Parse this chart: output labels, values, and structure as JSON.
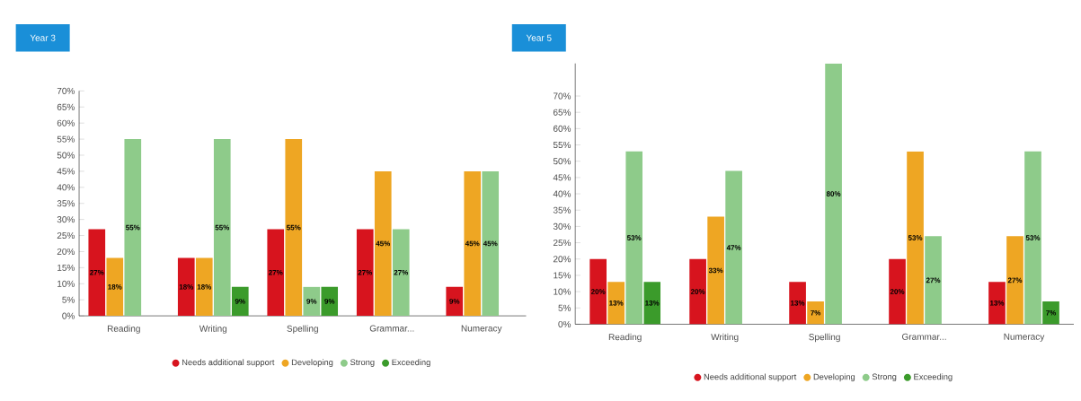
{
  "chart_data": [
    {
      "type": "bar",
      "title": "Year 3",
      "categories": [
        "Reading",
        "Writing",
        "Spelling",
        "Grammar...",
        "Numeracy"
      ],
      "series": [
        {
          "name": "Needs additional support",
          "color": "#d7141e",
          "values": [
            27,
            18,
            27,
            27,
            9
          ],
          "value_labels": [
            "27%",
            "18%",
            "27%",
            "27%",
            "9%"
          ]
        },
        {
          "name": "Developing",
          "color": "#eea623",
          "values": [
            18,
            18,
            55,
            45,
            45
          ],
          "value_labels": [
            "18%",
            "18%",
            "55%",
            "45%",
            "45%"
          ]
        },
        {
          "name": "Strong",
          "color": "#8ecb8a",
          "values": [
            55,
            55,
            9,
            27,
            45
          ],
          "value_labels": [
            "55%",
            "55%",
            "9%",
            "27%",
            "45%"
          ]
        },
        {
          "name": "Exceeding",
          "color": "#3b9b2b",
          "values": [
            null,
            9,
            9,
            null,
            null
          ],
          "value_labels": [
            null,
            "9%",
            "9%",
            null,
            null
          ]
        }
      ],
      "ylim": [
        0,
        70
      ],
      "yticks": [
        {
          "value": 0,
          "label": "0%"
        },
        {
          "value": 5,
          "label": "5%"
        },
        {
          "value": 10,
          "label": "10%"
        },
        {
          "value": 15,
          "label": "15%"
        },
        {
          "value": 20,
          "label": "20%"
        },
        {
          "value": 25,
          "label": "25%"
        },
        {
          "value": 30,
          "label": "30%"
        },
        {
          "value": 35,
          "label": "35%"
        },
        {
          "value": 40,
          "label": "40%"
        },
        {
          "value": 45,
          "label": "45%"
        },
        {
          "value": 50,
          "label": "50%"
        },
        {
          "value": 55,
          "label": "55%"
        },
        {
          "value": 60,
          "label": "60%"
        },
        {
          "value": 65,
          "label": "65%"
        },
        {
          "value": 70,
          "label": "70%"
        }
      ],
      "legend": "bottom"
    },
    {
      "type": "bar",
      "title": "Year 5",
      "categories": [
        "Reading",
        "Writing",
        "Spelling",
        "Grammar...",
        "Numeracy"
      ],
      "series": [
        {
          "name": "Needs additional support",
          "color": "#d7141e",
          "values": [
            20,
            20,
            13,
            20,
            13
          ],
          "value_labels": [
            "20%",
            "20%",
            "13%",
            "20%",
            "13%"
          ]
        },
        {
          "name": "Developing",
          "color": "#eea623",
          "values": [
            13,
            33,
            7,
            53,
            27
          ],
          "value_labels": [
            "13%",
            "33%",
            "7%",
            "53%",
            "27%"
          ]
        },
        {
          "name": "Strong",
          "color": "#8ecb8a",
          "values": [
            53,
            47,
            80,
            27,
            53
          ],
          "value_labels": [
            "53%",
            "47%",
            "80%",
            "27%",
            "53%"
          ]
        },
        {
          "name": "Exceeding",
          "color": "#3b9b2b",
          "values": [
            13,
            null,
            null,
            null,
            7
          ],
          "value_labels": [
            "13%",
            null,
            null,
            null,
            "7%"
          ]
        }
      ],
      "yticks": [
        {
          "value": 0,
          "label": "0%"
        },
        {
          "value": 5,
          "label": "5%"
        },
        {
          "value": 10,
          "label": "10%"
        },
        {
          "value": 15,
          "label": "15%"
        },
        {
          "value": 20,
          "label": "20%"
        },
        {
          "value": 25,
          "label": "25%"
        },
        {
          "value": 30,
          "label": "30%"
        },
        {
          "value": 35,
          "label": "35%"
        },
        {
          "value": 40,
          "label": "40%"
        },
        {
          "value": 45,
          "label": "45%"
        },
        {
          "value": 50,
          "label": "50%"
        },
        {
          "value": 55,
          "label": "55%"
        },
        {
          "value": 60,
          "label": "60%"
        },
        {
          "value": 65,
          "label": "65%"
        },
        {
          "value": 70,
          "label": "70%"
        }
      ],
      "ylim": [
        0,
        80
      ],
      "legend": "bottom"
    }
  ]
}
